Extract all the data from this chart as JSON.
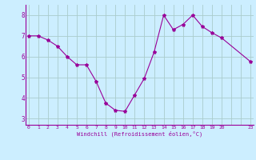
{
  "x": [
    0,
    1,
    2,
    3,
    4,
    5,
    6,
    7,
    8,
    9,
    10,
    11,
    12,
    13,
    14,
    15,
    16,
    17,
    18,
    19,
    20,
    23
  ],
  "y": [
    7.0,
    7.0,
    6.8,
    6.5,
    6.0,
    5.6,
    5.6,
    4.8,
    3.75,
    3.4,
    3.35,
    4.15,
    4.95,
    6.2,
    8.0,
    7.3,
    7.55,
    8.0,
    7.45,
    7.15,
    6.9,
    5.75
  ],
  "line_color": "#990099",
  "marker": "*",
  "marker_size": 3,
  "bg_color": "#cceeff",
  "grid_color": "#aacccc",
  "xlabel": "Windchill (Refroidissement éolien,°C)",
  "xlabel_color": "#990099",
  "tick_color": "#990099",
  "yticks": [
    3,
    4,
    5,
    6,
    7,
    8
  ],
  "xtick_labels": [
    "0",
    "1",
    "2",
    "3",
    "4",
    "5",
    "6",
    "7",
    "8",
    "9",
    "10",
    "11",
    "12",
    "13",
    "14",
    "15",
    "16",
    "17",
    "18",
    "19",
    "20",
    "",
    "",
    "23"
  ],
  "xtick_positions": [
    0,
    1,
    2,
    3,
    4,
    5,
    6,
    7,
    8,
    9,
    10,
    11,
    12,
    13,
    14,
    15,
    16,
    17,
    18,
    19,
    20,
    21,
    22,
    23
  ],
  "ylim": [
    2.7,
    8.5
  ],
  "xlim": [
    -0.3,
    23.3
  ]
}
